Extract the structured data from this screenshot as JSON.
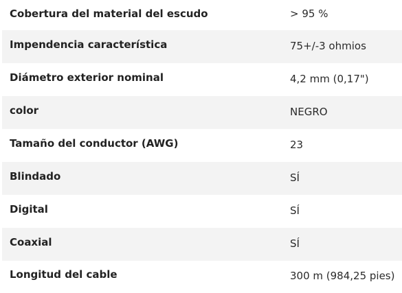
{
  "specs": [
    {
      "label": "Cobertura del material del escudo",
      "value": "> 95 %"
    },
    {
      "label": "Impendencia característica",
      "value": "75+/-3 ohmios"
    },
    {
      "label": "Diámetro exterior nominal",
      "value": "4,2 mm (0,17\")"
    },
    {
      "label": "color",
      "value": "NEGRO"
    },
    {
      "label": "Tamaño del conductor (AWG)",
      "value": "23"
    },
    {
      "label": "Blindado",
      "value": "SÍ"
    },
    {
      "label": "Digital",
      "value": "SÍ"
    },
    {
      "label": "Coaxial",
      "value": "SÍ"
    },
    {
      "label": "Longitud del cable",
      "value": "300 m (984,25 pies)"
    }
  ],
  "colors": {
    "row_shade": "#f3f3f3",
    "text": "#222222"
  }
}
